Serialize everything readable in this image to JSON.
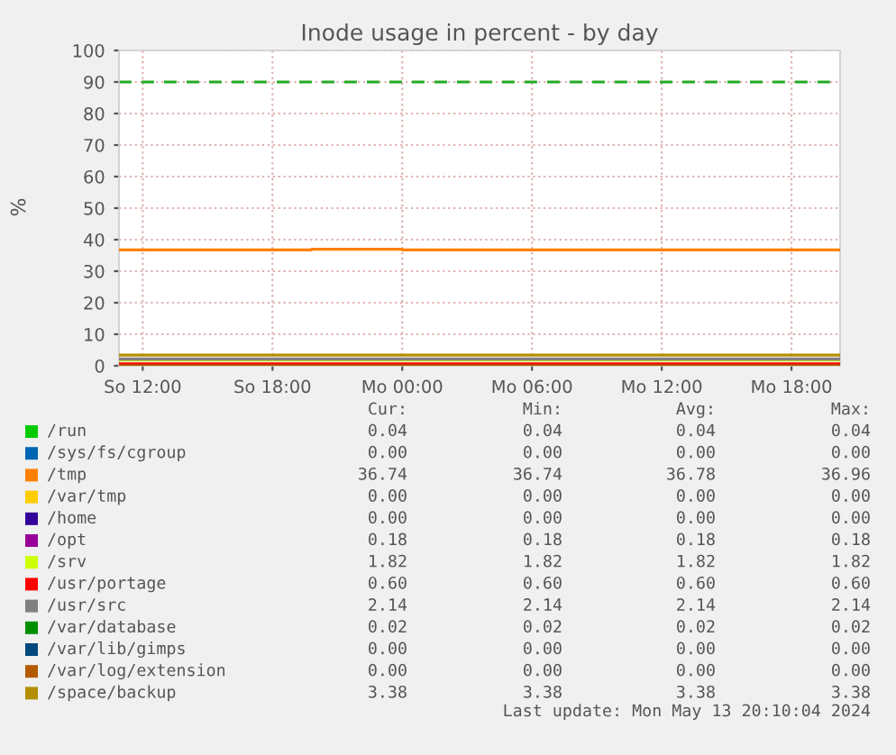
{
  "chart_data": {
    "type": "line",
    "title": "Inode usage in percent - by day",
    "ylabel": "%",
    "xlim": [
      "2024-05-12T10:54",
      "2024-05-13T20:15"
    ],
    "xticks": [
      {
        "value": "2024-05-12T12:00",
        "label": "So 12:00"
      },
      {
        "value": "2024-05-12T18:00",
        "label": "So 18:00"
      },
      {
        "value": "2024-05-13T00:00",
        "label": "Mo 00:00"
      },
      {
        "value": "2024-05-13T06:00",
        "label": "Mo 06:00"
      },
      {
        "value": "2024-05-13T12:00",
        "label": "Mo 12:00"
      },
      {
        "value": "2024-05-13T18:00",
        "label": "Mo 18:00"
      }
    ],
    "ylim": [
      0,
      100
    ],
    "yticks": [
      0,
      10,
      20,
      30,
      40,
      50,
      60,
      70,
      80,
      90,
      100
    ],
    "grid": true,
    "legend": "bottom",
    "ref_lines": [
      {
        "axis": "y",
        "value": 90,
        "color": "#22aa22",
        "line_style": "dashed"
      }
    ],
    "series": [
      {
        "name": "/run",
        "color": "#00cc00"
      },
      {
        "name": "/sys/fs/cgroup",
        "color": "#0066b3"
      },
      {
        "name": "/tmp",
        "color": "#ff8000",
        "x": [
          "2024-05-12T10:54",
          "2024-05-12T19:48",
          "2024-05-12T19:48",
          "2024-05-13T00:00",
          "2024-05-13T00:00",
          "2024-05-13T20:15"
        ],
        "values": [
          36.74,
          36.74,
          36.96,
          36.96,
          36.74,
          36.74
        ]
      },
      {
        "name": "/var/tmp",
        "color": "#ffcc00"
      },
      {
        "name": "/home",
        "color": "#330099"
      },
      {
        "name": "/opt",
        "color": "#990099"
      },
      {
        "name": "/srv",
        "color": "#ccff00",
        "x": [
          "2024-05-12T10:54",
          "2024-05-13T20:15"
        ],
        "values": [
          1.82,
          1.82
        ]
      },
      {
        "name": "/usr/portage",
        "color": "#ff0000",
        "x": [
          "2024-05-12T10:54",
          "2024-05-13T20:15"
        ],
        "values": [
          0.6,
          0.6
        ]
      },
      {
        "name": "/usr/src",
        "color": "#808080",
        "x": [
          "2024-05-12T10:54",
          "2024-05-13T20:15"
        ],
        "values": [
          2.14,
          2.14
        ]
      },
      {
        "name": "/var/database",
        "color": "#008f00"
      },
      {
        "name": "/var/lib/gimps",
        "color": "#00487d"
      },
      {
        "name": "/var/log/extension",
        "color": "#b35a00",
        "x": [
          "2024-05-12T10:54",
          "2024-05-13T20:15"
        ],
        "values": [
          0.0,
          0.0
        ]
      },
      {
        "name": "/space/backup",
        "color": "#b38f00",
        "x": [
          "2024-05-12T10:54",
          "2024-05-13T20:15"
        ],
        "values": [
          3.38,
          3.38
        ]
      }
    ],
    "annotations": [
      "Cur:",
      "Min:",
      "Avg:",
      "Max:",
      "0.04",
      "0.04",
      "0.04",
      "0.04",
      "0.00",
      "0.00",
      "0.00",
      "0.00",
      "36.74",
      "36.74",
      "36.78",
      "36.96",
      "0.00",
      "0.00",
      "0.00",
      "0.00",
      "0.00",
      "0.00",
      "0.00",
      "0.00",
      "0.18",
      "0.18",
      "0.18",
      "0.18",
      "1.82",
      "1.82",
      "1.82",
      "1.82",
      "0.60",
      "0.60",
      "0.60",
      "0.60",
      "2.14",
      "2.14",
      "2.14",
      "2.14",
      "0.02",
      "0.02",
      "0.02",
      "0.02",
      "0.00",
      "0.00",
      "0.00",
      "0.00",
      "0.00",
      "0.00",
      "0.00",
      "0.00",
      "3.38",
      "3.38",
      "3.38",
      "3.38",
      "Last update: Mon May 13 20:10:04 2024"
    ]
  }
}
